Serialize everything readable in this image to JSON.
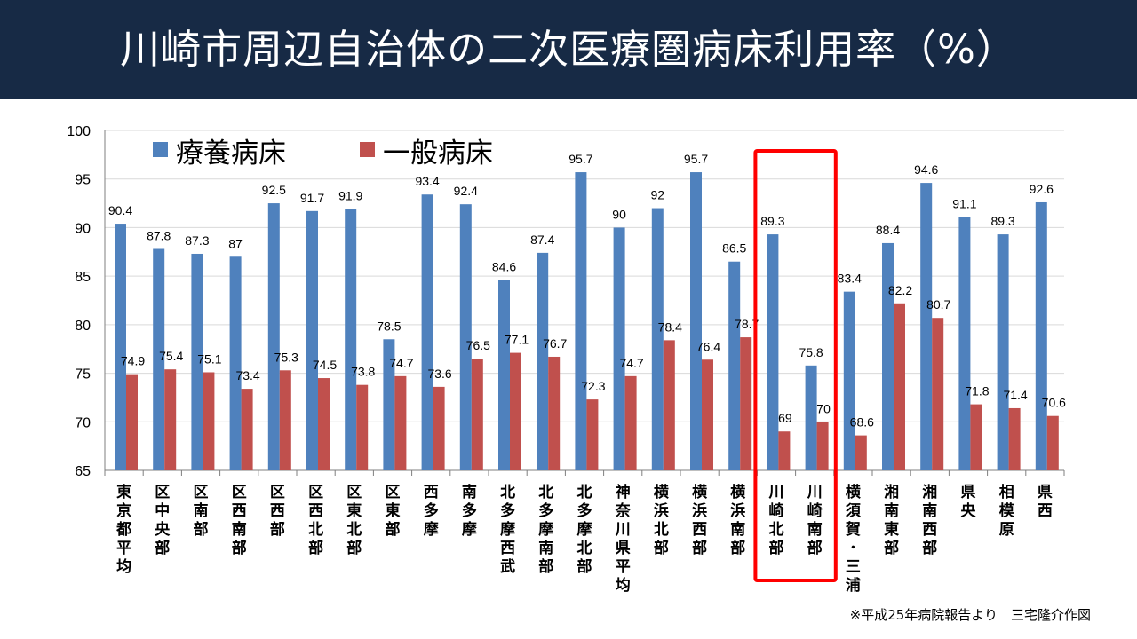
{
  "title": "川崎市周辺自治体の二次医療圏病床利用率（%）",
  "note": "※平成25年病院報告より　三宅隆介作図",
  "colors": {
    "title_bg": "#172a45",
    "series1": "#4f81bd",
    "series2": "#c0504d",
    "highlight": "#ff0000",
    "grid": "#d9d9d9"
  },
  "chart_data": {
    "type": "bar",
    "title": "川崎市周辺自治体の二次医療圏病床利用率（%）",
    "ylim": [
      65,
      100
    ],
    "yticks": [
      65,
      70,
      75,
      80,
      85,
      90,
      95,
      100
    ],
    "grid": true,
    "legend_position": "top-left",
    "categories": [
      "東京都平均",
      "区中央部",
      "区南部",
      "区西南部",
      "区西部",
      "区西北部",
      "区東北部",
      "区東部",
      "西多摩",
      "南多摩",
      "北多摩西武",
      "北多摩南部",
      "北多摩北部",
      "神奈川県平均",
      "横浜北部",
      "横浜西部",
      "横浜南部",
      "川崎北部",
      "川崎南部",
      "横須賀・三浦",
      "湘南東部",
      "湘南西部",
      "県央",
      "相模原",
      "県西"
    ],
    "category_labels": [
      "東京都平均",
      "区中央部",
      "区南部",
      "区西南部",
      "区西部",
      "区西北部",
      "区東北部",
      "区東部",
      "西多摩",
      "南多摩",
      "北多摩西武",
      "北多摩南部",
      "北多摩北部",
      "神奈川県平均",
      "横浜北部",
      "横浜西部",
      "横浜南部",
      "川崎北部",
      "川崎南部",
      "横須賀･三浦",
      "湘南東部",
      "湘南西部",
      "県央",
      "相模原",
      "県西"
    ],
    "series": [
      {
        "name": "療養病床",
        "values": [
          90.4,
          87.8,
          87.3,
          87,
          92.5,
          91.7,
          91.9,
          78.5,
          93.4,
          92.4,
          84.6,
          87.4,
          95.7,
          90,
          92,
          95.7,
          86.5,
          89.3,
          75.8,
          83.4,
          88.4,
          94.6,
          91.1,
          89.3,
          92.6
        ]
      },
      {
        "name": "一般病床",
        "values": [
          74.9,
          75.4,
          75.1,
          73.4,
          75.3,
          74.5,
          73.8,
          74.7,
          73.6,
          76.5,
          77.1,
          76.7,
          72.3,
          74.7,
          78.4,
          76.4,
          78.7,
          69,
          70,
          68.6,
          82.2,
          80.7,
          71.8,
          71.4,
          70.6
        ]
      }
    ],
    "highlight_categories": [
      "川崎北部",
      "川崎南部"
    ]
  }
}
